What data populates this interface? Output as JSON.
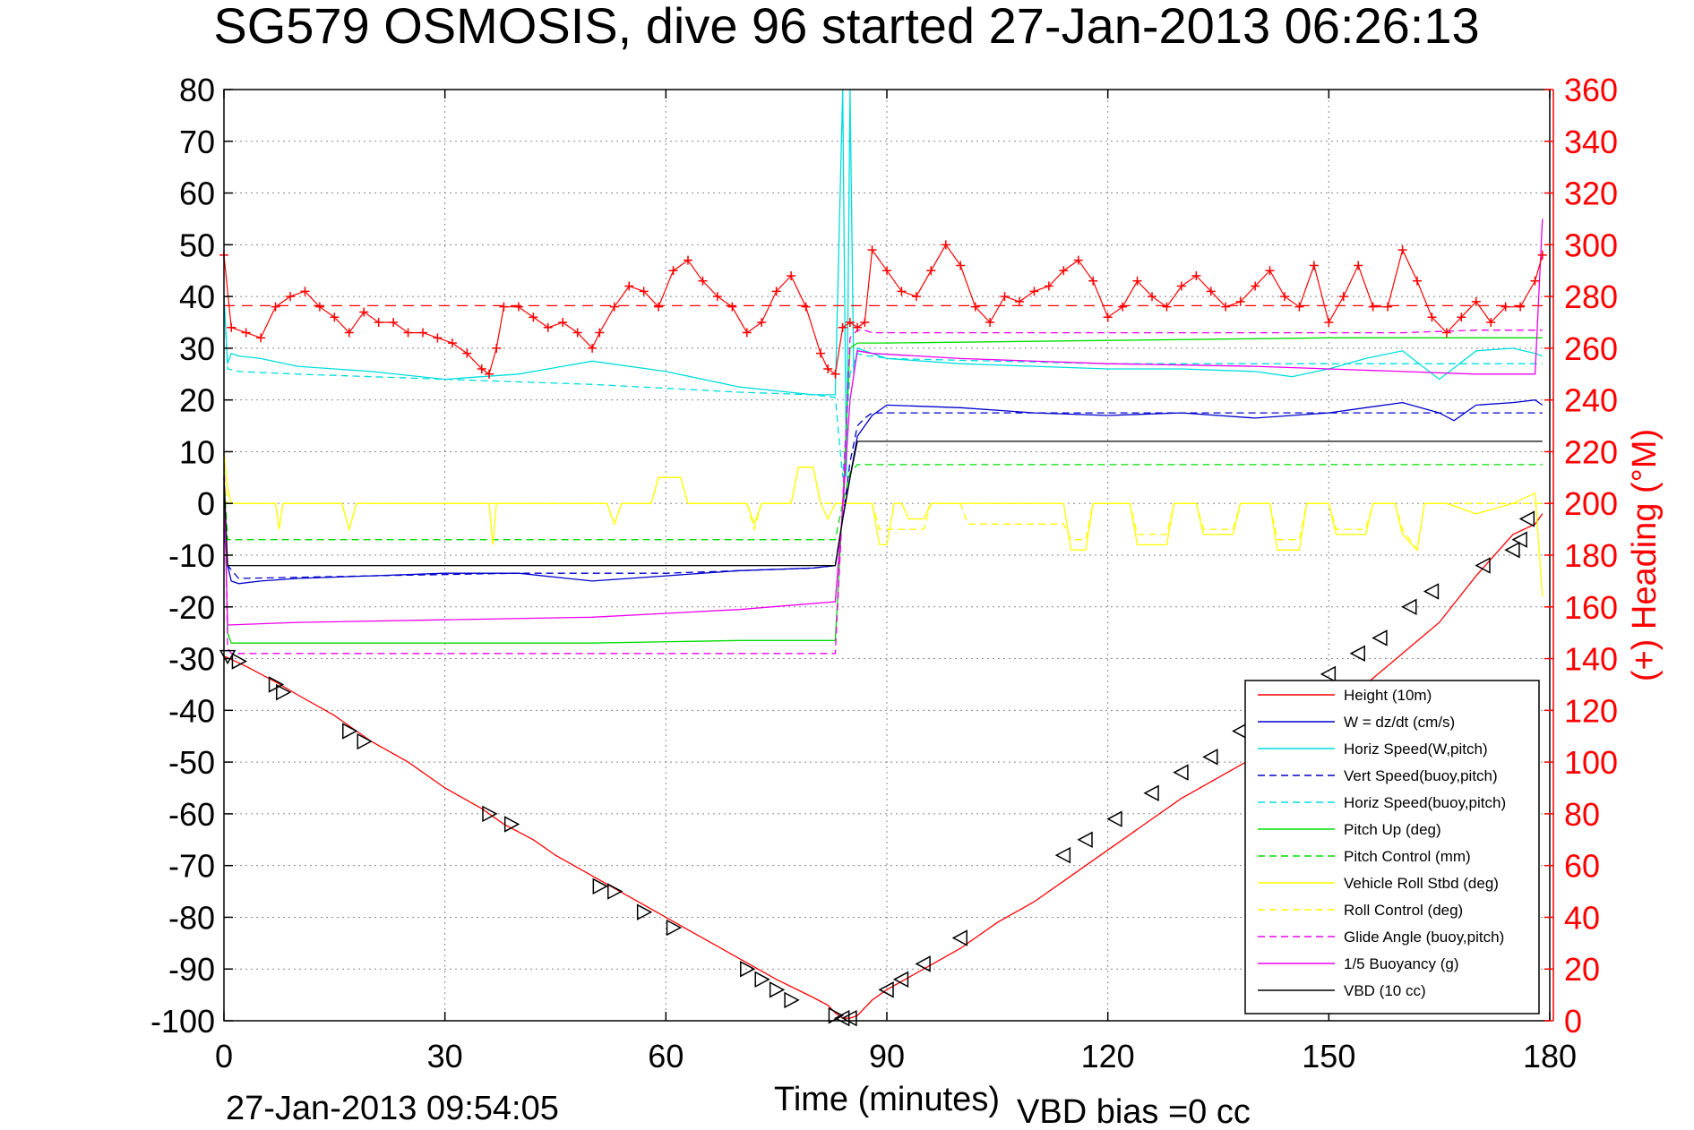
{
  "chart_data": {
    "type": "line",
    "title": "SG579 OSMOSIS, dive 96 started 27-Jan-2013 06:26:13",
    "xlabel": "Time (minutes)",
    "ylabel": "",
    "ylabel_right": "(+) Heading (°M)",
    "xlim": [
      0,
      180
    ],
    "ylim": [
      -100,
      80
    ],
    "ylim_right": [
      0,
      360
    ],
    "x_ticks": [
      0,
      30,
      60,
      90,
      120,
      150,
      180
    ],
    "y_ticks": [
      80,
      70,
      60,
      50,
      40,
      30,
      20,
      10,
      0,
      -10,
      -20,
      -30,
      -40,
      -50,
      -60,
      -70,
      -80,
      -90,
      -100
    ],
    "y_ticks_right": [
      360,
      340,
      320,
      300,
      280,
      260,
      240,
      220,
      200,
      180,
      160,
      140,
      120,
      100,
      80,
      60,
      40,
      20,
      0
    ],
    "grid": true,
    "legend_position": "bottom-right",
    "footer_left": "27-Jan-2013 09:54:05",
    "footer_right": "VBD bias =0 cc",
    "colors": {
      "red": "#ff0000",
      "blue": "#0000cc",
      "cyan": "#00dddd",
      "green": "#00dd00",
      "yellow": "#ffff00",
      "magenta": "#ee00ee",
      "black": "#000000"
    },
    "series": [
      {
        "name": "Height (10m)",
        "color": "#ff0000",
        "dash": false,
        "x": [
          0,
          3,
          7,
          10,
          15,
          20,
          25,
          30,
          35,
          38,
          42,
          45,
          50,
          55,
          60,
          65,
          70,
          75,
          80,
          82,
          83,
          84,
          85,
          86,
          88,
          90,
          95,
          100,
          105,
          110,
          115,
          120,
          125,
          130,
          135,
          140,
          145,
          150,
          155,
          160,
          165,
          170,
          175,
          178,
          179
        ],
        "y": [
          -29.5,
          -31.5,
          -34.5,
          -37,
          -41,
          -46,
          -50,
          -55,
          -59,
          -62,
          -65,
          -68,
          -72,
          -76,
          -80,
          -84,
          -88,
          -92,
          -95.5,
          -97,
          -98.5,
          -99.5,
          -99.5,
          -99,
          -96,
          -94,
          -90,
          -86,
          -81,
          -77,
          -72,
          -67,
          -62,
          -57,
          -53,
          -49,
          -44,
          -39,
          -35,
          -29,
          -23,
          -14,
          -6,
          -4,
          -2
        ]
      },
      {
        "name": "W = dz/dt (cm/s)",
        "color": "#0000cc",
        "dash": false,
        "x": [
          0,
          0.5,
          1,
          2,
          5,
          10,
          20,
          30,
          40,
          50,
          60,
          70,
          80,
          83,
          84,
          85,
          86,
          88,
          90,
          100,
          110,
          120,
          130,
          140,
          145,
          150,
          155,
          160,
          165,
          167,
          170,
          175,
          178,
          179
        ],
        "y": [
          -5,
          -12,
          -15,
          -15.5,
          -15,
          -14.5,
          -14,
          -13.5,
          -13.5,
          -15,
          -14,
          -13,
          -12.5,
          -12,
          -3,
          5,
          13,
          17,
          19,
          18.5,
          17.5,
          17,
          17.5,
          16.5,
          17,
          17.5,
          18.5,
          19.5,
          17.5,
          16,
          19,
          19.5,
          20,
          19
        ]
      },
      {
        "name": "Horiz Speed(W,pitch)",
        "color": "#00dddd",
        "dash": false,
        "x": [
          0,
          0.5,
          1,
          2,
          5,
          10,
          20,
          30,
          40,
          50,
          60,
          70,
          80,
          83,
          84,
          84.5,
          85,
          85.5,
          86,
          88,
          90,
          100,
          110,
          120,
          130,
          140,
          145,
          150,
          155,
          160,
          165,
          170,
          175,
          178,
          179
        ],
        "y": [
          40,
          27,
          29,
          28.5,
          28,
          26.5,
          25.5,
          24,
          25,
          27.5,
          25.5,
          22.5,
          21,
          21,
          80,
          5,
          80,
          25,
          30,
          29,
          28,
          27,
          26.5,
          26,
          26,
          25.5,
          24.5,
          26,
          28,
          29.5,
          24,
          29.5,
          30,
          29,
          28.5
        ]
      },
      {
        "name": "Vert Speed(buoy,pitch)",
        "color": "#0000cc",
        "dash": true,
        "x": [
          0,
          0.5,
          2,
          20,
          40,
          60,
          80,
          83,
          84,
          85,
          86,
          87,
          88,
          90,
          120,
          150,
          160,
          179
        ],
        "y": [
          -5,
          -12,
          -14.5,
          -14,
          -13.5,
          -13.5,
          -12.5,
          -12,
          -3,
          8,
          15,
          16.5,
          17.5,
          17.5,
          17.5,
          17.5,
          17.5,
          17.5
        ]
      },
      {
        "name": "Horiz Speed(buoy,pitch)",
        "color": "#00dddd",
        "dash": true,
        "x": [
          0,
          0.5,
          2,
          10,
          30,
          50,
          70,
          80,
          83,
          84,
          85,
          86,
          87,
          88,
          90,
          120,
          150,
          160,
          179
        ],
        "y": [
          40,
          26,
          25.5,
          25,
          24,
          23,
          21.5,
          21,
          20.5,
          5,
          25,
          29,
          28.5,
          28.5,
          28,
          27,
          27,
          27,
          27
        ]
      },
      {
        "name": "Pitch Up (deg)",
        "color": "#00dd00",
        "dash": false,
        "x": [
          0,
          0.5,
          1,
          10,
          30,
          50,
          70,
          80,
          83,
          84,
          85,
          86,
          87,
          88,
          90,
          120,
          150,
          160,
          170,
          179
        ],
        "y": [
          10,
          -25,
          -27,
          -27,
          -27,
          -27,
          -26.5,
          -26.5,
          -26.5,
          0,
          30,
          31,
          31,
          31,
          31,
          31.5,
          32,
          32,
          32,
          32
        ]
      },
      {
        "name": "Pitch Control (mm)",
        "color": "#00dd00",
        "dash": true,
        "x": [
          0,
          0.5,
          1,
          83,
          84,
          85,
          86,
          88,
          179
        ],
        "y": [
          5,
          -7,
          -7,
          -7,
          0,
          6,
          7.5,
          7.5,
          7.5
        ]
      },
      {
        "name": "Vehicle Roll Stbd (deg)",
        "color": "#ffff00",
        "dash": false,
        "x": [
          0,
          0.5,
          1,
          7,
          7.5,
          8,
          16,
          17,
          18,
          36,
          36.5,
          37,
          52,
          53,
          54,
          58,
          59,
          62,
          63,
          71,
          72,
          73,
          77,
          78,
          80,
          81,
          82,
          83,
          84,
          88,
          89,
          90,
          91,
          92,
          93,
          95,
          96,
          100,
          101,
          114,
          115,
          117,
          118,
          123,
          124,
          128,
          129,
          132,
          133,
          137,
          138,
          142,
          143,
          146,
          147,
          150,
          151,
          155,
          156,
          159,
          160,
          162,
          163,
          166,
          170,
          175,
          178,
          179
        ],
        "y": [
          10,
          3,
          0,
          0,
          -5,
          0,
          0,
          -5,
          0,
          0,
          -8,
          0,
          0,
          -4,
          0,
          0,
          5,
          5,
          0,
          0,
          -4,
          0,
          0,
          7,
          7,
          0,
          -3,
          0,
          0,
          0,
          -8,
          -8,
          0,
          0,
          -3,
          -3,
          0,
          0,
          0,
          0,
          -9,
          -9,
          0,
          0,
          -8,
          -8,
          0,
          0,
          -6,
          -6,
          0,
          0,
          -9,
          -9,
          0,
          0,
          -6,
          -6,
          0,
          0,
          -6,
          -9,
          0,
          0,
          -2,
          0,
          2,
          -18
        ]
      },
      {
        "name": "Roll Control (deg)",
        "color": "#ffff00",
        "dash": true,
        "x": [
          0,
          0.5,
          1,
          7,
          7.5,
          8,
          16,
          17,
          18,
          52,
          53,
          54,
          58,
          59,
          62,
          63,
          71,
          72,
          73,
          77,
          78,
          80,
          81,
          82,
          88,
          89,
          90,
          95,
          96,
          100,
          101,
          114,
          115,
          117,
          118,
          123,
          124,
          128,
          129,
          132,
          133,
          137,
          138,
          142,
          143,
          146,
          147,
          150,
          151,
          155,
          156,
          159,
          160,
          162,
          163,
          166,
          179
        ],
        "y": [
          5,
          0,
          0,
          0,
          -5,
          0,
          0,
          -5,
          0,
          0,
          -4,
          0,
          0,
          5,
          5,
          0,
          0,
          -5,
          0,
          0,
          7,
          7,
          0,
          0,
          0,
          -5,
          -5,
          -5,
          0,
          0,
          -4,
          -4,
          -7,
          -7,
          0,
          0,
          -6,
          -6,
          0,
          0,
          -5,
          -5,
          0,
          0,
          -7,
          -7,
          0,
          0,
          -5,
          -5,
          0,
          0,
          -5,
          -9,
          0,
          0,
          0
        ]
      },
      {
        "name": "Glide Angle (buoy,pitch)",
        "color": "#ee00ee",
        "dash": true,
        "x": [
          0,
          0.5,
          1,
          83,
          84,
          85,
          86,
          87,
          88,
          90,
          120,
          150,
          160,
          170,
          179
        ],
        "y": [
          10,
          -28,
          -29,
          -29,
          0,
          32,
          33.5,
          33.5,
          33,
          33,
          33,
          33,
          33,
          33.5,
          33.5
        ]
      },
      {
        "name": "1/5 Buoyancy (g)",
        "color": "#ee00ee",
        "dash": false,
        "x": [
          0,
          0.5,
          10,
          30,
          50,
          70,
          83,
          84,
          85,
          86,
          88,
          100,
          120,
          140,
          150,
          160,
          170,
          178,
          179
        ],
        "y": [
          5,
          -23.5,
          -23,
          -22.5,
          -22,
          -20.5,
          -19,
          -1,
          20,
          29.5,
          29,
          28,
          27,
          26.5,
          26,
          25.5,
          25,
          25,
          55
        ]
      },
      {
        "name": "VBD (10 cc)",
        "color": "#000000",
        "dash": false,
        "x": [
          0,
          0.5,
          1,
          83,
          84,
          85,
          86,
          87,
          88,
          179
        ],
        "y": [
          5,
          -12,
          -12,
          -12,
          -3,
          5,
          12,
          12,
          12,
          12
        ]
      }
    ],
    "heading_series": {
      "name": "heading",
      "color": "#ff0000",
      "marker": "+",
      "x": [
        0,
        1,
        3,
        5,
        7,
        9,
        11,
        13,
        15,
        17,
        19,
        21,
        23,
        25,
        27,
        29,
        31,
        33,
        35,
        36,
        37,
        38,
        40,
        42,
        44,
        46,
        48,
        50,
        51,
        53,
        55,
        57,
        59,
        61,
        63,
        65,
        67,
        69,
        71,
        73,
        75,
        77,
        79,
        81,
        82,
        83,
        84,
        85,
        86,
        87,
        88,
        90,
        92,
        94,
        96,
        98,
        100,
        102,
        104,
        106,
        108,
        110,
        112,
        114,
        116,
        118,
        120,
        122,
        124,
        126,
        128,
        130,
        132,
        134,
        136,
        138,
        140,
        142,
        144,
        146,
        148,
        150,
        152,
        154,
        156,
        158,
        160,
        162,
        164,
        166,
        168,
        170,
        172,
        174,
        176,
        178,
        179
      ],
      "y": [
        296,
        268,
        266,
        264,
        276,
        280,
        282,
        276,
        272,
        266,
        274,
        270,
        270,
        266,
        266,
        264,
        262,
        258,
        252,
        250,
        260,
        276,
        276,
        272,
        268,
        270,
        266,
        260,
        266,
        276,
        284,
        282,
        276,
        290,
        294,
        286,
        280,
        276,
        266,
        270,
        282,
        288,
        276,
        258,
        252,
        250,
        268,
        270,
        268,
        270,
        298,
        290,
        282,
        280,
        290,
        300,
        292,
        276,
        270,
        280,
        278,
        282,
        284,
        290,
        294,
        286,
        272,
        276,
        286,
        280,
        276,
        284,
        288,
        282,
        276,
        278,
        284,
        290,
        280,
        276,
        292,
        270,
        280,
        292,
        276,
        276,
        298,
        286,
        272,
        266,
        272,
        278,
        270,
        276,
        276,
        286,
        296
      ]
    },
    "triangle_markers": {
      "x": [
        0.5,
        2,
        7,
        8,
        17,
        19,
        36,
        39,
        51,
        53,
        57,
        61,
        71,
        73,
        75,
        77,
        83,
        84,
        85,
        90,
        92,
        95,
        100,
        114,
        117,
        121,
        126,
        130,
        134,
        138,
        142,
        146,
        150,
        154,
        157,
        161,
        164,
        171,
        175,
        176,
        177
      ],
      "y": [
        -29.5,
        -30.5,
        -35,
        -36.5,
        -44,
        -46,
        -60,
        -62,
        -74,
        -75,
        -79,
        -82,
        -90,
        -92,
        -94,
        -96,
        -99,
        -99.5,
        -99.5,
        -94,
        -92,
        -89,
        -84,
        -68,
        -65,
        -61,
        -56,
        -52,
        -49,
        -44,
        -42,
        -38,
        -33,
        -29,
        -26,
        -20,
        -17,
        -12,
        -9,
        -7,
        -3
      ]
    }
  }
}
